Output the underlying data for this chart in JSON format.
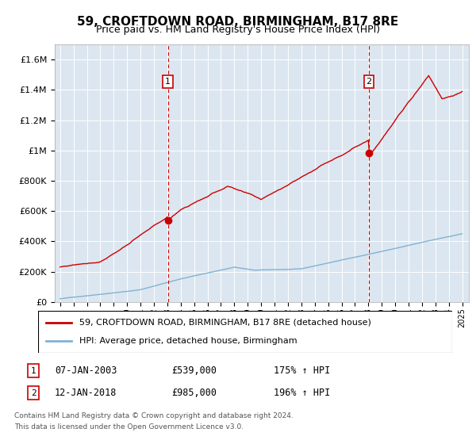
{
  "title": "59, CROFTDOWN ROAD, BIRMINGHAM, B17 8RE",
  "subtitle": "Price paid vs. HM Land Registry's House Price Index (HPI)",
  "plot_bg_color": "#dce6f0",
  "ylim": [
    0,
    1700000
  ],
  "yticks": [
    0,
    200000,
    400000,
    600000,
    800000,
    1000000,
    1200000,
    1400000,
    1600000
  ],
  "ytick_labels": [
    "£0",
    "£200K",
    "£400K",
    "£600K",
    "£800K",
    "£1M",
    "£1.2M",
    "£1.4M",
    "£1.6M"
  ],
  "red_line_color": "#cc0000",
  "blue_line_color": "#7fb3d3",
  "marker1_year": 2003.04,
  "marker1_price": 539000,
  "marker1_label": "1",
  "marker1_date": "07-JAN-2003",
  "marker1_hpi": "175% ↑ HPI",
  "marker2_year": 2018.04,
  "marker2_price": 985000,
  "marker2_label": "2",
  "marker2_date": "12-JAN-2018",
  "marker2_hpi": "196% ↑ HPI",
  "legend1": "59, CROFTDOWN ROAD, BIRMINGHAM, B17 8RE (detached house)",
  "legend2": "HPI: Average price, detached house, Birmingham",
  "footer": "Contains HM Land Registry data © Crown copyright and database right 2024.\nThis data is licensed under the Open Government Licence v3.0."
}
